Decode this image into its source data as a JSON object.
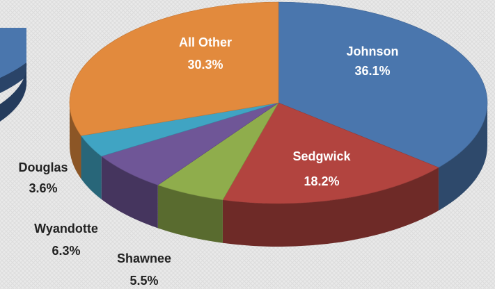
{
  "chart_data": {
    "type": "pie",
    "categories": [
      "Johnson",
      "Sedgwick",
      "Shawnee",
      "Wyandotte",
      "Douglas",
      "All Other"
    ],
    "values": [
      36.1,
      18.2,
      5.5,
      6.3,
      3.6,
      30.3
    ],
    "value_labels": [
      "36.1%",
      "18.2%",
      "5.5%",
      "6.3%",
      "3.6%",
      "30.3%"
    ],
    "colors": [
      "#4a76ad",
      "#b2443f",
      "#8fad4c",
      "#6f5697",
      "#40a4c3",
      "#e28a3d"
    ]
  }
}
